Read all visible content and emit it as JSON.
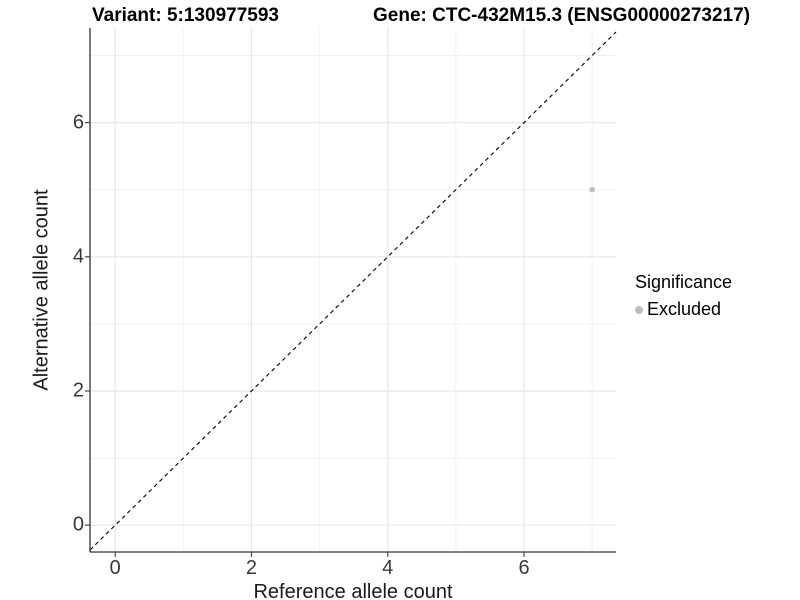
{
  "chart_data": {
    "type": "scatter",
    "title_left": "Variant: 5:130977593",
    "title_right": "Gene: CTC-432M15.3 (ENSG00000273217)",
    "xlabel": "Reference allele count",
    "ylabel": "Alternative allele count",
    "xlim": [
      -0.37,
      7.35
    ],
    "ylim": [
      -0.4,
      7.41
    ],
    "x_ticks": [
      0,
      2,
      4,
      6
    ],
    "y_ticks": [
      0,
      2,
      4,
      6
    ],
    "x_minor_ticks": [
      1,
      3,
      5,
      7
    ],
    "y_minor_ticks": [
      1,
      3,
      5,
      7
    ],
    "grid": "major+minor",
    "reference_line": {
      "type": "identity y=x",
      "style": "dashed",
      "color": "#000000"
    },
    "series": [
      {
        "name": "Excluded",
        "color": "#bdbdbd",
        "points": [
          {
            "x": 7,
            "y": 5
          }
        ]
      }
    ],
    "legend": {
      "position": "right",
      "title": "Significance",
      "items": [
        {
          "label": "Excluded",
          "color": "#bdbdbd",
          "marker": "circle"
        }
      ]
    }
  },
  "colors": {
    "background": "#ffffff",
    "axis_line": "#333333",
    "tick_mark": "#4a4a4a",
    "tick_label": "#383838",
    "grid_major": "#e7e7e7",
    "grid_minor": "#f2f2f2",
    "point": "#bdbdbd"
  }
}
